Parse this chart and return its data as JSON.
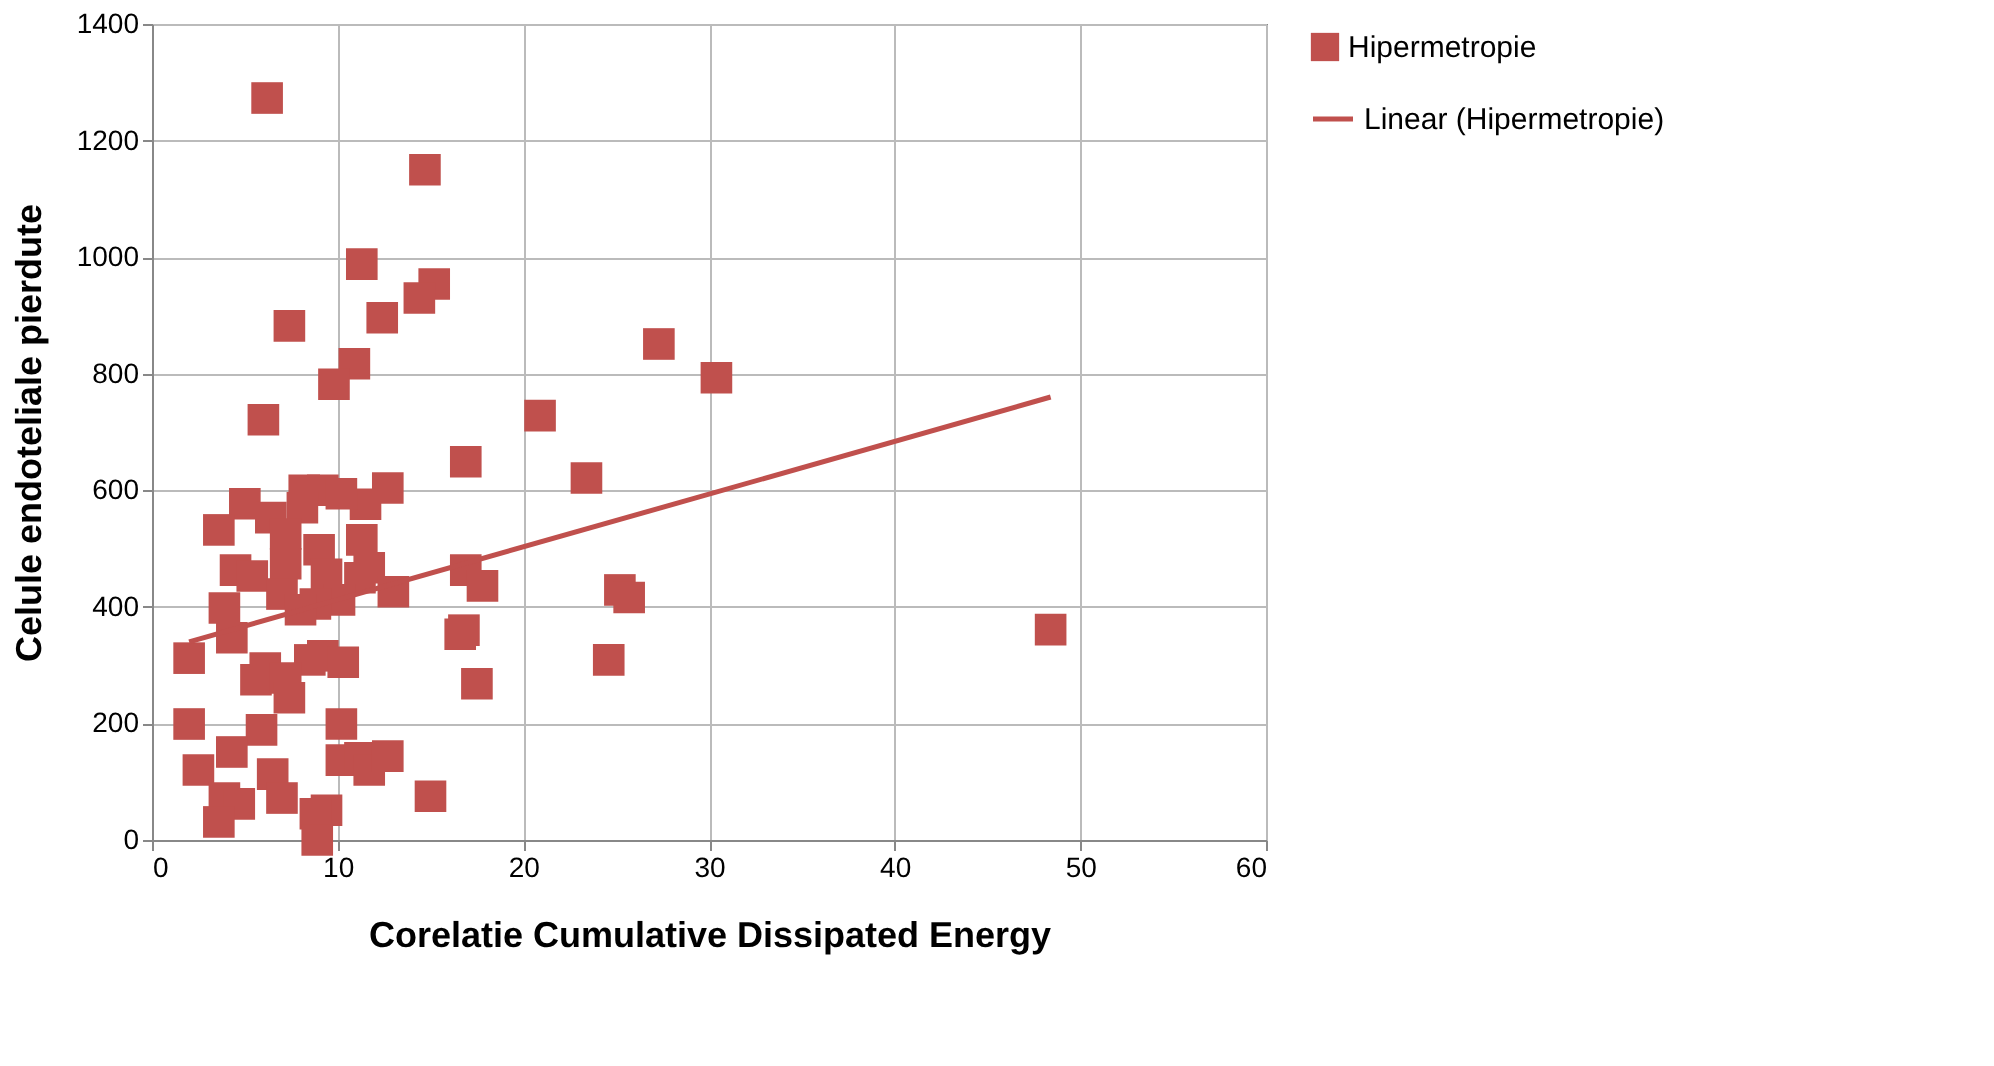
{
  "chart_data": {
    "type": "scatter",
    "xlabel": "Corelatie Cumulative Dissipated Energy",
    "ylabel": "Celule endoteliale pierdute",
    "xlim": [
      0,
      60
    ],
    "xticks": [
      0,
      10,
      20,
      30,
      40,
      50,
      60
    ],
    "ylim": [
      0,
      1400
    ],
    "yticks": [
      0,
      200,
      400,
      600,
      800,
      1000,
      1200,
      1400
    ],
    "grid": true,
    "legend": "right",
    "series": [
      {
        "name": "Hipermetropie",
        "color": "#c0504d",
        "marker": "square",
        "x": [
          6.2,
          14.7,
          11.3,
          15.2,
          14.4,
          12.4,
          7.4,
          27.3,
          30.4,
          10.9,
          9.8,
          20.9,
          6.0,
          23.4,
          16.9,
          12.7,
          11.5,
          5.0,
          8.2,
          9.2,
          10.2,
          8.1,
          6.4,
          7.2,
          3.6,
          9.0,
          11.3,
          11.7,
          7.2,
          4.5,
          5.4,
          9.4,
          11.2,
          7.0,
          10.1,
          8.8,
          8.0,
          3.9,
          13.0,
          16.9,
          17.8,
          4.3,
          2.0,
          16.6,
          16.8,
          17.5,
          6.1,
          8.5,
          9.2,
          10.3,
          5.6,
          7.2,
          7.4,
          2.0,
          5.9,
          4.3,
          10.2,
          2.5,
          6.5,
          10.2,
          11.2,
          11.7,
          12.7,
          15.0,
          3.9,
          7.0,
          4.7,
          3.6,
          9.4,
          8.8,
          8.9,
          24.6,
          25.2,
          25.7,
          48.4
        ],
        "values": [
          1273,
          1150,
          988,
          954,
          930,
          896,
          882,
          851,
          793,
          817,
          782,
          728,
          721,
          621,
          649,
          604,
          576,
          577,
          600,
          600,
          594,
          570,
          553,
          525,
          532,
          498,
          515,
          467,
          474,
          463,
          453,
          456,
          450,
          422,
          412,
          405,
          395,
          398,
          426,
          463,
          436,
          347,
          312,
          353,
          360,
          268,
          295,
          309,
          316,
          305,
          275,
          278,
          244,
          199,
          189,
          151,
          199,
          120,
          113,
          137,
          141,
          120,
          144,
          75,
          72,
          72,
          62,
          31,
          51,
          45,
          0,
          309,
          429,
          416,
          361
        ]
      },
      {
        "name": "Linear (Hipermetropie)",
        "color": "#c0504d",
        "type": "line",
        "x": [
          2.0,
          48.4
        ],
        "values": [
          340,
          760
        ]
      }
    ]
  }
}
